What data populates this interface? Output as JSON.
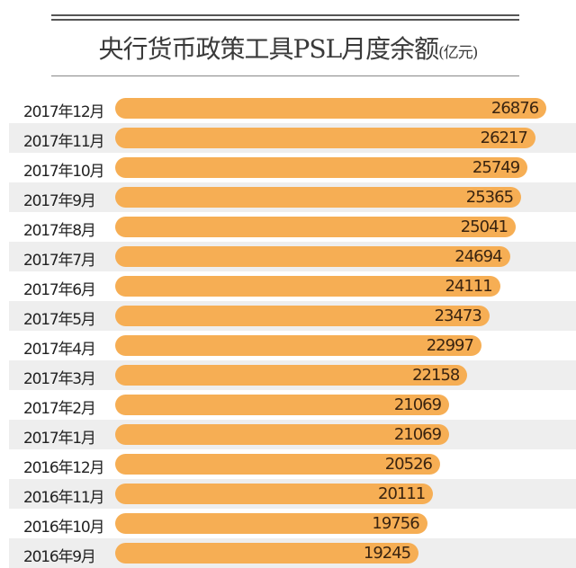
{
  "chart_data": {
    "type": "bar",
    "orientation": "horizontal",
    "title": "央行货币政策工具PSL月度余额",
    "unit": "(亿元)",
    "categories": [
      "2017年12月",
      "2017年11月",
      "2017年10月",
      "2017年9月",
      "2017年8月",
      "2017年7月",
      "2017年6月",
      "2017年5月",
      "2017年4月",
      "2017年3月",
      "2017年2月",
      "2017年1月",
      "2016年12月",
      "2016年11月",
      "2016年10月",
      "2016年9月"
    ],
    "values": [
      26876,
      26217,
      25749,
      25365,
      25041,
      24694,
      24111,
      23473,
      22997,
      22158,
      21069,
      21069,
      20526,
      20111,
      19756,
      19245
    ],
    "bar_color": "#f6ae54",
    "grid": false,
    "legend": "none"
  }
}
